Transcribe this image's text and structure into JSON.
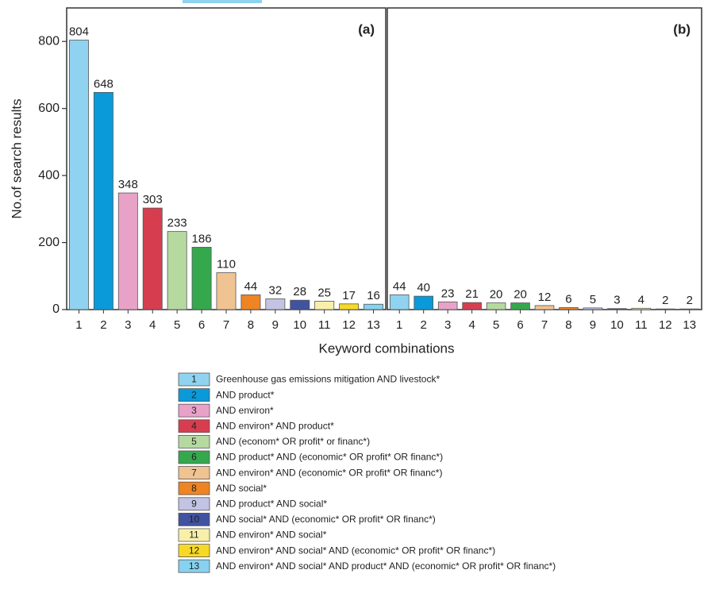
{
  "chart_data": [
    {
      "type": "bar",
      "panel_label": "(a)",
      "ylabel": "No.of search results",
      "xlabel": "Keyword combinations",
      "categories": [
        "1",
        "2",
        "3",
        "4",
        "5",
        "6",
        "7",
        "8",
        "9",
        "10",
        "11",
        "12",
        "13"
      ],
      "values": [
        804,
        648,
        348,
        303,
        233,
        186,
        110,
        44,
        32,
        28,
        25,
        17,
        16
      ],
      "colors": [
        "#8fd3f0",
        "#0a9ad9",
        "#e8a2c8",
        "#d63e50",
        "#b6d9a0",
        "#35a84e",
        "#f0c392",
        "#ef8424",
        "#c3c3e3",
        "#4152a0",
        "#f8f0aa",
        "#f7d925",
        "#86d2f0"
      ],
      "ylim": [
        0,
        900
      ],
      "yticks": [
        0,
        200,
        400,
        600,
        800
      ],
      "legend": [
        "Greenhouse gas emissions mitigation AND livestock*",
        "AND product*",
        "AND environ*",
        "AND environ* AND product*",
        "AND (econom* OR profit* or financ*)",
        "AND product* AND (economic* OR profit* OR financ*)",
        "AND environ* AND (economic* OR profit* OR financ*)",
        "AND social*",
        "AND product* AND social*",
        "AND social* AND (economic* OR profit* OR financ*)",
        "AND environ* AND social*",
        "AND environ* AND social* AND (economic* OR profit* OR financ*)",
        "AND environ* AND social* AND product* AND (economic* OR profit* OR financ*)"
      ]
    },
    {
      "type": "bar",
      "panel_label": "(b)",
      "categories": [
        "1",
        "2",
        "3",
        "4",
        "5",
        "6",
        "7",
        "8",
        "9",
        "10",
        "11",
        "12",
        "13"
      ],
      "values": [
        44,
        40,
        23,
        21,
        20,
        20,
        12,
        6,
        5,
        3,
        4,
        2,
        2
      ],
      "colors": [
        "#8fd3f0",
        "#0a9ad9",
        "#e8a2c8",
        "#d63e50",
        "#b6d9a0",
        "#35a84e",
        "#f0c392",
        "#ef8424",
        "#c3c3e3",
        "#4152a0",
        "#f8f0aa",
        "#f7d925",
        "#86d2f0"
      ],
      "ylim": [
        0,
        900
      ]
    }
  ]
}
